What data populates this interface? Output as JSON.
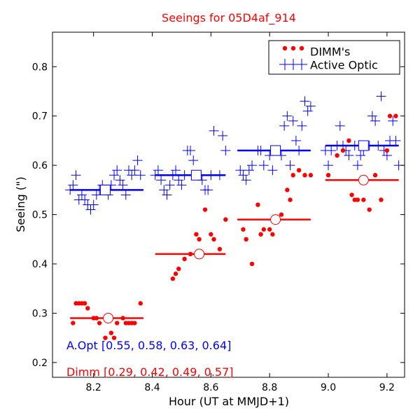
{
  "chart_data": {
    "type": "scatter",
    "title": "Seeings for 05D4af_914",
    "xlabel": "Hour (UT at MMJD+1)",
    "ylabel": "Seeing (\")",
    "xlim": [
      8.06,
      9.26
    ],
    "ylim": [
      0.17,
      0.87
    ],
    "xticks": [
      8.2,
      8.4,
      8.6,
      8.8,
      9.0,
      9.2
    ],
    "yticks": [
      0.2,
      0.3,
      0.4,
      0.5,
      0.6,
      0.7,
      0.8
    ],
    "xtick_labels": [
      "8.2",
      "8.4",
      "8.6",
      "8.8",
      "9.0",
      "9.2"
    ],
    "ytick_labels": [
      "0.2",
      "0.3",
      "0.4",
      "0.5",
      "0.6",
      "0.7",
      "0.8"
    ],
    "legend_position": "top-right",
    "colors": {
      "dimm": "#ff0000",
      "active_optic": "#0000ff",
      "title": "#ff0000"
    },
    "series": [
      {
        "name": "DIMM's",
        "marker": "dot",
        "color": "#ff0000",
        "points": [
          [
            8.13,
            0.28
          ],
          [
            8.14,
            0.32
          ],
          [
            8.15,
            0.32
          ],
          [
            8.16,
            0.32
          ],
          [
            8.17,
            0.32
          ],
          [
            8.18,
            0.31
          ],
          [
            8.2,
            0.29
          ],
          [
            8.21,
            0.29
          ],
          [
            8.22,
            0.28
          ],
          [
            8.24,
            0.25
          ],
          [
            8.26,
            0.26
          ],
          [
            8.27,
            0.25
          ],
          [
            8.28,
            0.28
          ],
          [
            8.3,
            0.29
          ],
          [
            8.31,
            0.28
          ],
          [
            8.32,
            0.28
          ],
          [
            8.33,
            0.28
          ],
          [
            8.34,
            0.28
          ],
          [
            8.36,
            0.32
          ],
          [
            8.47,
            0.37
          ],
          [
            8.48,
            0.38
          ],
          [
            8.49,
            0.39
          ],
          [
            8.51,
            0.41
          ],
          [
            8.53,
            0.42
          ],
          [
            8.55,
            0.46
          ],
          [
            8.56,
            0.45
          ],
          [
            8.58,
            0.51
          ],
          [
            8.6,
            0.46
          ],
          [
            8.61,
            0.45
          ],
          [
            8.63,
            0.43
          ],
          [
            8.65,
            0.49
          ],
          [
            8.71,
            0.47
          ],
          [
            8.72,
            0.45
          ],
          [
            8.74,
            0.4
          ],
          [
            8.76,
            0.52
          ],
          [
            8.77,
            0.46
          ],
          [
            8.78,
            0.47
          ],
          [
            8.8,
            0.47
          ],
          [
            8.81,
            0.46
          ],
          [
            8.84,
            0.5
          ],
          [
            8.86,
            0.55
          ],
          [
            8.87,
            0.53
          ],
          [
            8.88,
            0.58
          ],
          [
            8.9,
            0.59
          ],
          [
            8.92,
            0.58
          ],
          [
            8.94,
            0.58
          ],
          [
            9.0,
            0.58
          ],
          [
            9.03,
            0.62
          ],
          [
            9.05,
            0.63
          ],
          [
            9.07,
            0.65
          ],
          [
            9.08,
            0.54
          ],
          [
            9.09,
            0.53
          ],
          [
            9.1,
            0.53
          ],
          [
            9.12,
            0.53
          ],
          [
            9.14,
            0.51
          ],
          [
            9.16,
            0.58
          ],
          [
            9.18,
            0.53
          ],
          [
            9.2,
            0.63
          ],
          [
            9.21,
            0.7
          ],
          [
            9.23,
            0.7
          ]
        ],
        "bin_medians": [
          {
            "x": 8.25,
            "y": 0.29,
            "xrange": [
              8.12,
              8.37
            ]
          },
          {
            "x": 8.56,
            "y": 0.42,
            "xrange": [
              8.41,
              8.65
            ]
          },
          {
            "x": 8.82,
            "y": 0.49,
            "xrange": [
              8.69,
              8.94
            ]
          },
          {
            "x": 9.12,
            "y": 0.57,
            "xrange": [
              8.99,
              9.24
            ]
          }
        ]
      },
      {
        "name": "Active Optic",
        "marker": "plus",
        "color": "#0000ff",
        "points": [
          [
            8.12,
            0.55
          ],
          [
            8.13,
            0.56
          ],
          [
            8.14,
            0.58
          ],
          [
            8.15,
            0.53
          ],
          [
            8.16,
            0.54
          ],
          [
            8.17,
            0.53
          ],
          [
            8.18,
            0.52
          ],
          [
            8.19,
            0.51
          ],
          [
            8.2,
            0.52
          ],
          [
            8.21,
            0.54
          ],
          [
            8.22,
            0.55
          ],
          [
            8.23,
            0.56
          ],
          [
            8.25,
            0.54
          ],
          [
            8.26,
            0.56
          ],
          [
            8.27,
            0.58
          ],
          [
            8.28,
            0.59
          ],
          [
            8.29,
            0.57
          ],
          [
            8.3,
            0.56
          ],
          [
            8.31,
            0.54
          ],
          [
            8.32,
            0.59
          ],
          [
            8.33,
            0.58
          ],
          [
            8.34,
            0.59
          ],
          [
            8.35,
            0.61
          ],
          [
            8.36,
            0.58
          ],
          [
            8.41,
            0.58
          ],
          [
            8.42,
            0.59
          ],
          [
            8.43,
            0.57
          ],
          [
            8.44,
            0.55
          ],
          [
            8.45,
            0.54
          ],
          [
            8.46,
            0.56
          ],
          [
            8.47,
            0.58
          ],
          [
            8.48,
            0.59
          ],
          [
            8.49,
            0.57
          ],
          [
            8.5,
            0.56
          ],
          [
            8.51,
            0.58
          ],
          [
            8.52,
            0.63
          ],
          [
            8.53,
            0.63
          ],
          [
            8.54,
            0.61
          ],
          [
            8.56,
            0.58
          ],
          [
            8.57,
            0.57
          ],
          [
            8.58,
            0.55
          ],
          [
            8.59,
            0.55
          ],
          [
            8.6,
            0.58
          ],
          [
            8.61,
            0.67
          ],
          [
            8.63,
            0.58
          ],
          [
            8.64,
            0.66
          ],
          [
            8.65,
            0.63
          ],
          [
            8.7,
            0.59
          ],
          [
            8.71,
            0.58
          ],
          [
            8.72,
            0.57
          ],
          [
            8.73,
            0.59
          ],
          [
            8.74,
            0.6
          ],
          [
            8.76,
            0.63
          ],
          [
            8.77,
            0.63
          ],
          [
            8.78,
            0.6
          ],
          [
            8.8,
            0.62
          ],
          [
            8.81,
            0.59
          ],
          [
            8.82,
            0.63
          ],
          [
            8.83,
            0.63
          ],
          [
            8.84,
            0.62
          ],
          [
            8.85,
            0.68
          ],
          [
            8.86,
            0.7
          ],
          [
            8.87,
            0.6
          ],
          [
            8.88,
            0.69
          ],
          [
            8.89,
            0.65
          ],
          [
            8.9,
            0.63
          ],
          [
            8.91,
            0.68
          ],
          [
            8.92,
            0.73
          ],
          [
            8.93,
            0.71
          ],
          [
            8.94,
            0.72
          ],
          [
            8.99,
            0.63
          ],
          [
            9.0,
            0.6
          ],
          [
            9.01,
            0.63
          ],
          [
            9.03,
            0.64
          ],
          [
            9.04,
            0.68
          ],
          [
            9.05,
            0.64
          ],
          [
            9.06,
            0.63
          ],
          [
            9.07,
            0.62
          ],
          [
            9.09,
            0.64
          ],
          [
            9.1,
            0.6
          ],
          [
            9.11,
            0.62
          ],
          [
            9.12,
            0.63
          ],
          [
            9.14,
            0.64
          ],
          [
            9.15,
            0.7
          ],
          [
            9.16,
            0.69
          ],
          [
            9.17,
            0.64
          ],
          [
            9.18,
            0.74
          ],
          [
            9.19,
            0.63
          ],
          [
            9.2,
            0.62
          ],
          [
            9.21,
            0.65
          ],
          [
            9.22,
            0.69
          ],
          [
            9.23,
            0.65
          ],
          [
            9.24,
            0.6
          ]
        ],
        "bin_medians": [
          {
            "x": 8.24,
            "y": 0.55,
            "xrange": [
              8.12,
              8.37
            ]
          },
          {
            "x": 8.55,
            "y": 0.58,
            "xrange": [
              8.41,
              8.65
            ]
          },
          {
            "x": 8.82,
            "y": 0.63,
            "xrange": [
              8.69,
              8.94
            ]
          },
          {
            "x": 9.12,
            "y": 0.64,
            "xrange": [
              8.99,
              9.24
            ]
          }
        ]
      }
    ],
    "annotations": [
      {
        "key": "aopt",
        "text": "A.Opt [0.55, 0.58, 0.63, 0.64]",
        "color": "#0000ff"
      },
      {
        "key": "dimm",
        "text": "Dimm [0.29, 0.42, 0.49, 0.57]",
        "color": "#ff0000"
      }
    ]
  }
}
